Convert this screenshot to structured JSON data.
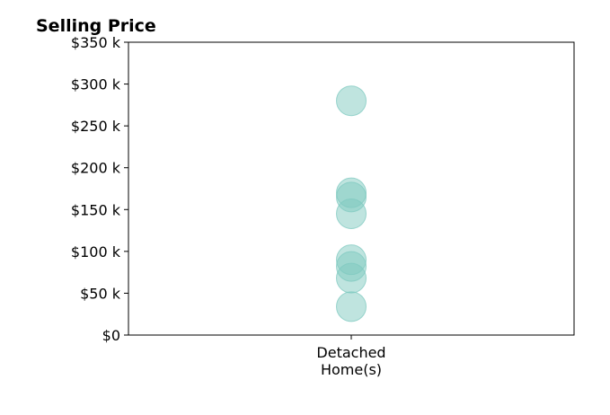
{
  "chart_data": {
    "type": "scatter",
    "title": "Selling Price",
    "xlabel": "",
    "ylabel": "",
    "categories": [
      "Detached\nHome(s)"
    ],
    "y_ticks": [
      {
        "value": 0,
        "label": "$0"
      },
      {
        "value": 50,
        "label": "$50 k"
      },
      {
        "value": 100,
        "label": "$100 k"
      },
      {
        "value": 150,
        "label": "$150 k"
      },
      {
        "value": 200,
        "label": "$200 k"
      },
      {
        "value": 250,
        "label": "$250 k"
      },
      {
        "value": 300,
        "label": "$300 k"
      },
      {
        "value": 350,
        "label": "$350 k"
      }
    ],
    "ylim": [
      0,
      350
    ],
    "grid": false,
    "series": [
      {
        "category": "Detached\nHome(s)",
        "values": [
          280,
          170,
          165,
          145,
          90,
          82,
          68,
          34
        ],
        "color": "#7fc9c0"
      }
    ]
  }
}
